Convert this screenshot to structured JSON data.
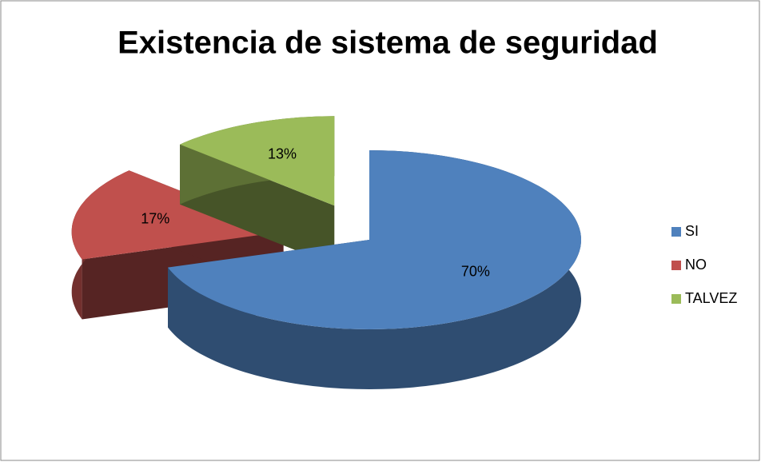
{
  "chart_data": {
    "type": "pie3d",
    "title": "Existencia de sistema de seguridad",
    "categories": [
      "SI",
      "NO",
      "TALVEZ"
    ],
    "values": [
      70,
      17,
      13
    ],
    "value_labels": [
      "70%",
      "17%",
      "13%"
    ],
    "colors": [
      "#4f81bd",
      "#c0504d",
      "#9bbb59"
    ],
    "explode": [
      false,
      true,
      true
    ],
    "legend": "right"
  }
}
